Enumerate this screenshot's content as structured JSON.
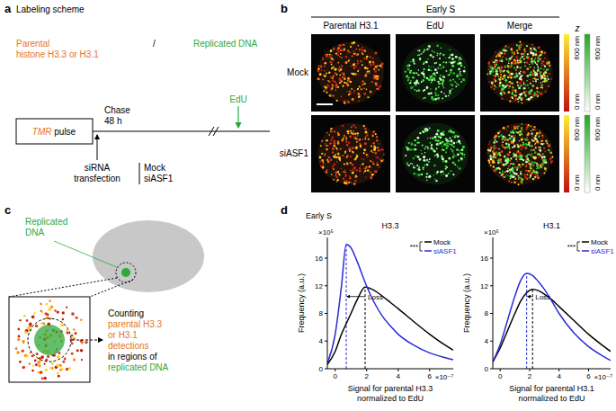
{
  "panel_a": {
    "label": "a",
    "title": "Labeling scheme",
    "parental": [
      "Parental",
      "histone H3.3 or H3.1"
    ],
    "separator": "/",
    "replicated": "Replicated DNA",
    "edu": "EdU",
    "pulse": {
      "tag": "TMR",
      "text": "pulse"
    },
    "chase": [
      "Chase",
      "48 h"
    ],
    "transfection": [
      "siRNA",
      "transfection"
    ],
    "conditions": [
      "Mock",
      "siASF1"
    ]
  },
  "panel_b": {
    "label": "b",
    "title": "Early S",
    "columns": [
      "Parental H3.1",
      "EdU",
      "Merge"
    ],
    "rows": [
      "Mock",
      "siASF1"
    ],
    "colorbar": {
      "axis": "z",
      "top": "600 nm",
      "bottom": "0 nm"
    }
  },
  "panel_c": {
    "label": "c",
    "cell_label": [
      "Replicated",
      "DNA"
    ],
    "steps": [
      "Counting",
      "parental H3.3",
      "or H3.1",
      "detections",
      "in regions of",
      "replicated DNA"
    ]
  },
  "panel_d": {
    "label": "d",
    "header": "Early S"
  },
  "chart_data": [
    {
      "type": "line",
      "title": "H3.3",
      "x_label": [
        "Signal for parental H3.3",
        "normalized to EdU"
      ],
      "y_label": "Frequency (a.u.)",
      "x_multiplier": "×10⁻⁷",
      "y_multiplier": "×10⁵",
      "annotations": {
        "significance": "***",
        "shift": "Loss"
      },
      "legend": "upper right",
      "x": [
        -0.5,
        0,
        0.4,
        0.7,
        1,
        1.4,
        1.9,
        2.5,
        3,
        3.5,
        4,
        5,
        6,
        7,
        7.5
      ],
      "series": [
        {
          "name": "Mock",
          "color": "#000000",
          "values": [
            0.6,
            2.5,
            5,
            6.5,
            8,
            10,
            11.8,
            11.3,
            10.5,
            9.6,
            8.7,
            6.8,
            5,
            3.4,
            2.7
          ]
        },
        {
          "name": "siASF1",
          "color": "#2b2bd9",
          "values": [
            0.8,
            5,
            12,
            18,
            17.5,
            15.5,
            12.5,
            9.5,
            7.6,
            6.2,
            5,
            3.4,
            2.3,
            1.6,
            1.3
          ]
        }
      ],
      "xlim": [
        -0.5,
        7.5
      ],
      "xticks": [
        0,
        2,
        4,
        6
      ],
      "ylim": [
        0,
        19
      ],
      "yticks": [
        0,
        4,
        8,
        12,
        16
      ]
    },
    {
      "type": "line",
      "title": "H3.1",
      "x_label": [
        "Signal for parental H3.1",
        "normalized to EdU"
      ],
      "y_label": "Frequency (a.u.)",
      "x_multiplier": "×10⁻⁷",
      "y_multiplier": "×10⁵",
      "annotations": {
        "significance": "***",
        "shift": "Loss"
      },
      "legend": "upper right",
      "x": [
        -0.5,
        0,
        0.5,
        1,
        1.4,
        1.8,
        2.2,
        2.6,
        3,
        3.5,
        4,
        5,
        6,
        7,
        7.5
      ],
      "series": [
        {
          "name": "Mock",
          "color": "#000000",
          "values": [
            1,
            3,
            5.5,
            8,
            9.8,
            11,
            11.5,
            11.3,
            10.8,
            10,
            9,
            7,
            5,
            3.3,
            2.5
          ]
        },
        {
          "name": "siASF1",
          "color": "#2b2bd9",
          "values": [
            1,
            3.5,
            7,
            10.5,
            12.8,
            13.8,
            13.5,
            12.6,
            11.5,
            9.8,
            8,
            5.2,
            3.2,
            1.8,
            1.2
          ]
        }
      ],
      "xlim": [
        -0.5,
        7.5
      ],
      "xticks": [
        0,
        2,
        4,
        6
      ],
      "ylim": [
        0,
        19
      ],
      "yticks": [
        0,
        4,
        8,
        12,
        16
      ]
    }
  ]
}
